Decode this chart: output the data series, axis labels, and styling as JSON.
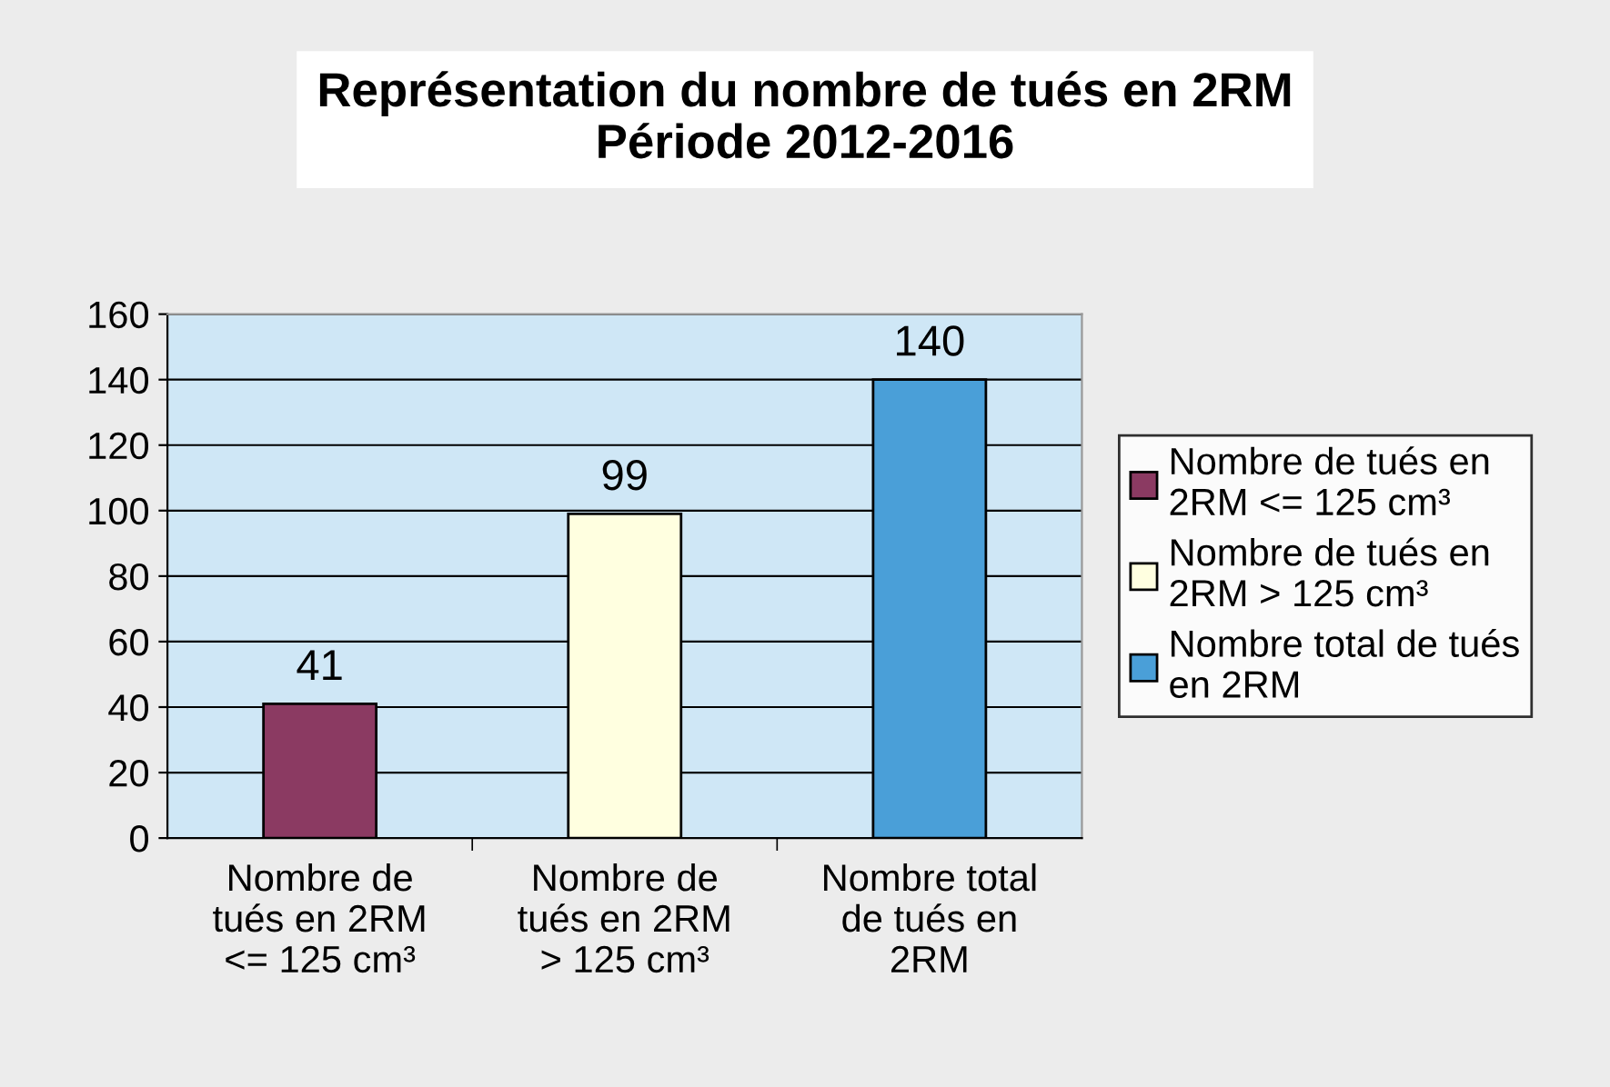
{
  "chart_data": {
    "type": "bar",
    "title": "Représentation du nombre de tués en 2RM\nPériode 2012-2016",
    "categories": [
      "Nombre de\ntués en 2RM\n<= 125 cm³",
      "Nombre de\ntués en 2RM\n> 125 cm³",
      "Nombre total\nde tués en\n2RM"
    ],
    "series": [
      {
        "name": "Nombre de tués en\n2RM <= 125 cm³",
        "color": "#8b3a62",
        "values": [
          41,
          null,
          null
        ]
      },
      {
        "name": "Nombre de tués en\n2RM > 125 cm³",
        "color": "#ffffe0",
        "values": [
          null,
          99,
          null
        ]
      },
      {
        "name": "Nombre total de tués\nen 2RM",
        "color": "#4a9fd8",
        "values": [
          null,
          null,
          140
        ]
      }
    ],
    "ylim": [
      0,
      160
    ],
    "yticks": [
      0,
      20,
      40,
      60,
      80,
      100,
      120,
      140,
      160
    ],
    "grid": "y",
    "legend": "right",
    "data_labels": true
  }
}
